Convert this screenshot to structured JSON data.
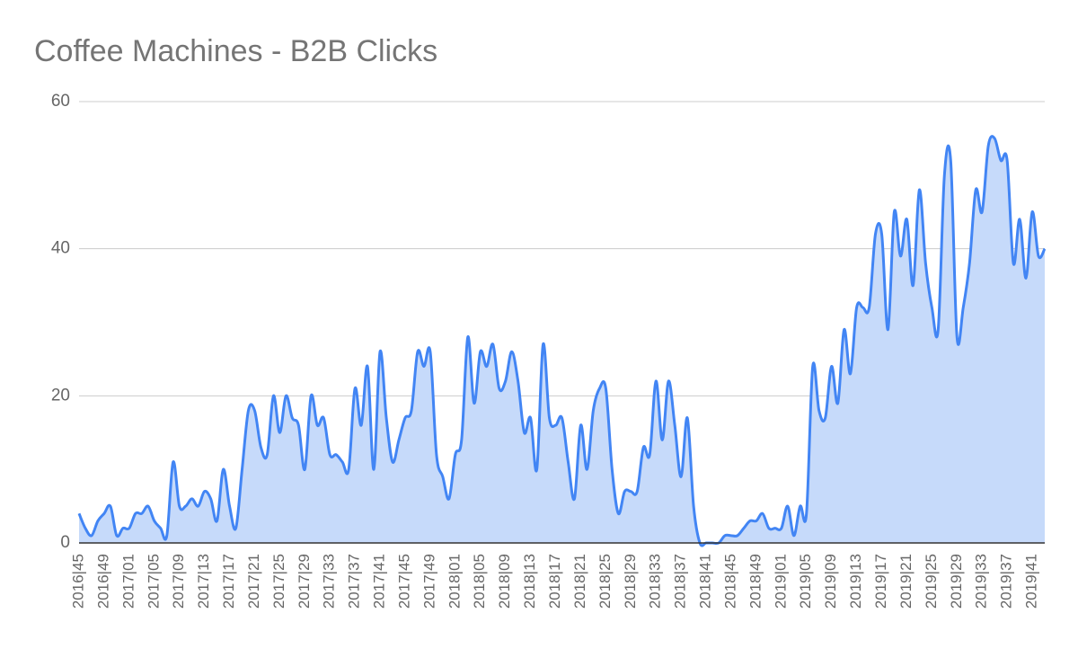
{
  "chart_data": {
    "type": "area",
    "title": "Coffee Machines - B2B Clicks",
    "categories": [
      "2016|45",
      null,
      null,
      null,
      "2016|49",
      null,
      null,
      null,
      "2017|01",
      null,
      null,
      null,
      "2017|05",
      null,
      null,
      null,
      "2017|09",
      null,
      null,
      null,
      "2017|13",
      null,
      null,
      null,
      "2017|17",
      null,
      null,
      null,
      "2017|21",
      null,
      null,
      null,
      "2017|25",
      null,
      null,
      null,
      "2017|29",
      null,
      null,
      null,
      "2017|33",
      null,
      null,
      null,
      "2017|37",
      null,
      null,
      null,
      "2017|41",
      null,
      null,
      null,
      "2017|45",
      null,
      null,
      null,
      "2017|49",
      null,
      null,
      null,
      "2018|01",
      null,
      null,
      null,
      "2018|05",
      null,
      null,
      null,
      "2018|09",
      null,
      null,
      null,
      "2018|13",
      null,
      null,
      null,
      "2018|17",
      null,
      null,
      null,
      "2018|21",
      null,
      null,
      null,
      "2018|25",
      null,
      null,
      null,
      "2018|29",
      null,
      null,
      null,
      "2018|33",
      null,
      null,
      null,
      "2018|37",
      null,
      null,
      null,
      "2018|41",
      null,
      null,
      null,
      "2018|45",
      null,
      null,
      null,
      "2018|49",
      null,
      null,
      null,
      "2019|01",
      null,
      null,
      null,
      "2019|05",
      null,
      null,
      null,
      "2019|09",
      null,
      null,
      null,
      "2019|13",
      null,
      null,
      null,
      "2019|17",
      null,
      null,
      null,
      "2019|21",
      null,
      null,
      null,
      "2019|25",
      null,
      null,
      null,
      "2019|29",
      null,
      null,
      null,
      "2019|33",
      null,
      null,
      null,
      "2019|37",
      null,
      null,
      null,
      "2019|41",
      null,
      null
    ],
    "series": [
      {
        "name": "B2B Clicks",
        "color": "#4285f4",
        "fill": "#c6dafa",
        "values": [
          4,
          2,
          1,
          3,
          4,
          5,
          1,
          2,
          2,
          4,
          4,
          5,
          3,
          2,
          1,
          11,
          5,
          5,
          6,
          5,
          7,
          6,
          3,
          10,
          5,
          2,
          10,
          18,
          18,
          13,
          12,
          20,
          15,
          20,
          17,
          16,
          10,
          20,
          16,
          17,
          12,
          12,
          11,
          10,
          21,
          16,
          24,
          10,
          26,
          17,
          11,
          14,
          17,
          18,
          26,
          24,
          26,
          12,
          9,
          6,
          12,
          14,
          28,
          19,
          26,
          24,
          27,
          21,
          22,
          26,
          22,
          15,
          17,
          10,
          27,
          17,
          16,
          17,
          11,
          6,
          16,
          10,
          18,
          21,
          21,
          10,
          4,
          7,
          7,
          7,
          13,
          12,
          22,
          14,
          22,
          16,
          9,
          17,
          5,
          0,
          0,
          0,
          0,
          1,
          1,
          1,
          2,
          3,
          3,
          4,
          2,
          2,
          2,
          5,
          1,
          5,
          4,
          24,
          18,
          17,
          24,
          19,
          29,
          23,
          32,
          32,
          32,
          42,
          42,
          29,
          45,
          39,
          44,
          35,
          48,
          38,
          32,
          29,
          50,
          52,
          28,
          32,
          38,
          48,
          45,
          54,
          55,
          52,
          52,
          38,
          44,
          36,
          45,
          39,
          40
        ]
      }
    ],
    "ylim": [
      0,
      60
    ],
    "yticks": [
      0,
      20,
      40,
      60
    ],
    "grid": true
  }
}
